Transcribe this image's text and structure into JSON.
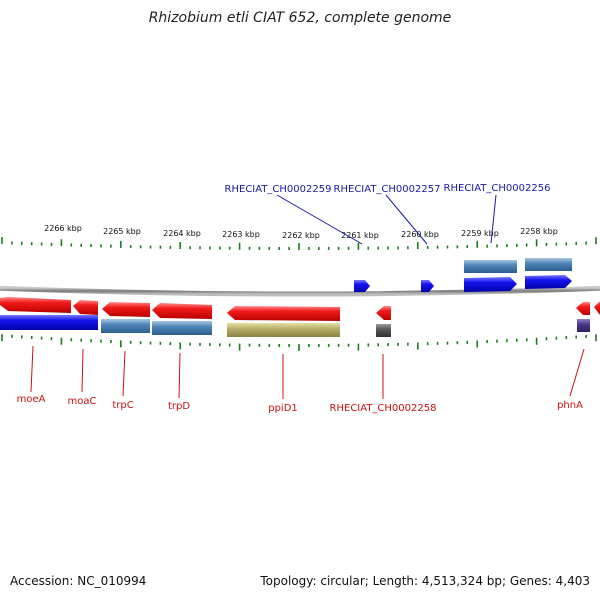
{
  "title": "Rhizobium etli CIAT 652, complete genome",
  "footer": {
    "accession": "Accession: NC_010994",
    "summary": "Topology: circular; Length: 4,513,324 bp; Genes: 4,403"
  },
  "scale_labels": [
    "2266 kbp",
    "2265 kbp",
    "2264 kbp",
    "2263 kbp",
    "2262 kbp",
    "2261 kbp",
    "2260 kbp",
    "2259 kbp",
    "2258 kbp"
  ],
  "top_gene_labels": [
    "RHECIAT_CH0002259",
    "RHECIAT_CH0002257",
    "RHECIAT_CH0002256"
  ],
  "bottom_gene_labels": [
    "moeA",
    "moaC",
    "trpC",
    "trpD",
    "ppiD1",
    "RHECIAT_CH0002258",
    "phnA"
  ],
  "colors": {
    "forward_label": "#1a1aa8",
    "reverse_label": "#cc1111",
    "tick": "#1f7a1f",
    "backbone": "#8a8a8a",
    "cds_red": "#ee1111",
    "cds_blue": "#1414ee",
    "steel": "#4f86b8",
    "olive": "#b5ae62",
    "gray_gene": "#555555",
    "purple_gene": "#4a3a8a"
  }
}
